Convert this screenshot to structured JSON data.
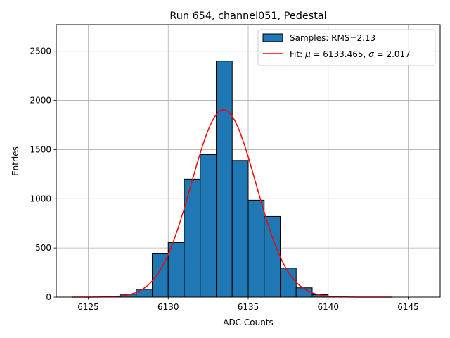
{
  "chart_data": {
    "type": "bar",
    "title": "Run 654, channel051, Pedestal",
    "xlabel": "ADC Counts",
    "ylabel": "Entries",
    "xlim": [
      6123,
      6147
    ],
    "ylim": [
      0,
      2770
    ],
    "grid": true,
    "xticks": [
      6125,
      6130,
      6135,
      6140,
      6145
    ],
    "yticks": [
      0,
      500,
      1000,
      1500,
      2000,
      2500
    ],
    "legend_position": "top-right",
    "colors": {
      "bars": "#1f77b4",
      "bar_edge": "#000000",
      "fit": "#ff0000",
      "grid": "#b0b0b0"
    },
    "histogram": {
      "name": "Samples: RMS=2.13",
      "bin_edges": [
        6126,
        6127,
        6128,
        6129,
        6130,
        6131,
        6132,
        6133,
        6134,
        6135,
        6136,
        6137,
        6138,
        6139,
        6140
      ],
      "values": [
        8,
        30,
        80,
        440,
        555,
        1200,
        1450,
        2400,
        1390,
        985,
        820,
        295,
        95,
        25
      ]
    },
    "fit": {
      "name": "Fit: μ = 6133.465, σ = 2.017",
      "mu": 6133.465,
      "sigma": 2.017,
      "amplitude": 1905,
      "x_range": [
        6124,
        6144
      ]
    }
  },
  "legend": {
    "samples_label": "Samples: RMS=2.13",
    "fit_label_prefix": "Fit: ",
    "mu_symbol": "μ",
    "fit_label_mid": " = 6133.465, ",
    "sigma_symbol": "σ",
    "fit_label_end": " = 2.017"
  }
}
